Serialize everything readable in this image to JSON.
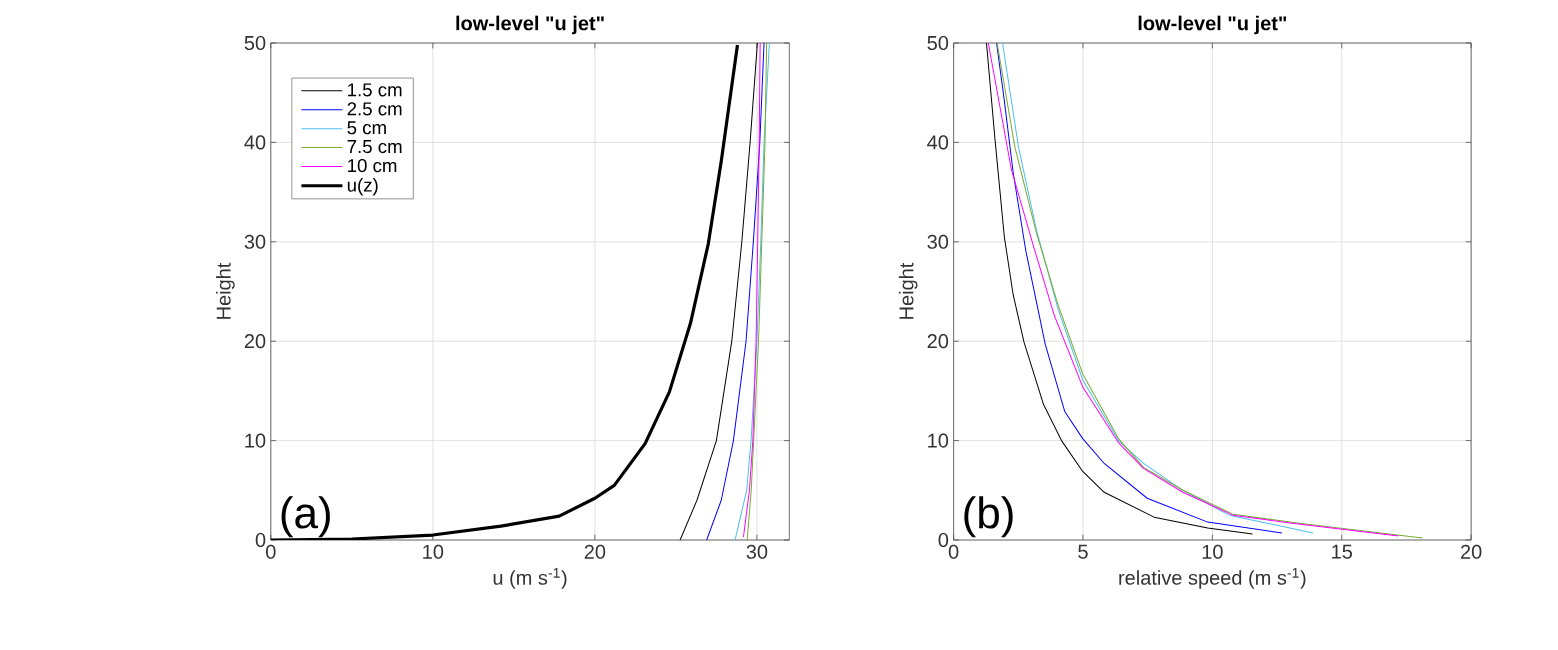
{
  "chart_data": [
    {
      "type": "line",
      "title": "low-level \"u jet\"",
      "xlabel": "u (m s$^{-1}$)",
      "ylabel": "Height",
      "annotations": [
        "(a)"
      ],
      "xlim": [
        0,
        32
      ],
      "ylim": [
        0,
        50
      ],
      "xticks": [
        0,
        10,
        20,
        30
      ],
      "yticks": [
        0,
        10,
        20,
        30,
        40,
        50
      ],
      "grid": true,
      "legend": "top left",
      "series": [
        {
          "name": "1.5 cm",
          "color": "#000000",
          "x": [
            25.26,
            26.3,
            27.5,
            28.45,
            29.07,
            29.58,
            30.03
          ],
          "values": [
            0,
            4,
            10,
            20,
            30,
            40,
            50
          ]
        },
        {
          "name": "2.5 cm",
          "color": "#0000ff",
          "x": [
            26.9,
            27.8,
            28.55,
            29.33,
            29.78,
            30.18,
            30.44
          ],
          "values": [
            0,
            4,
            10,
            20,
            30,
            40,
            50
          ]
        },
        {
          "name": "5 cm",
          "color": "#4dbeee",
          "x": [
            28.65,
            29.37,
            29.64,
            30.0,
            30.24,
            30.44,
            30.77
          ],
          "values": [
            0,
            5,
            10,
            20,
            30,
            40,
            50
          ]
        },
        {
          "name": "7.5 cm",
          "color": "#77ac30",
          "x": [
            29.4,
            29.65,
            29.8,
            30.1,
            30.3,
            30.5,
            30.6
          ],
          "values": [
            0,
            5,
            10,
            20,
            30,
            40,
            50
          ]
        },
        {
          "name": "10 cm",
          "color": "#ff00ff",
          "x": [
            29.17,
            29.54,
            29.75,
            29.95,
            30.05,
            30.14,
            30.2
          ],
          "values": [
            0.3,
            5,
            10,
            20,
            30,
            40,
            50
          ]
        },
        {
          "name": "u(z)",
          "color": "#000000",
          "x": [
            0,
            5,
            10,
            14.2,
            17.8,
            20,
            21.2,
            23.1,
            24.6,
            25.9,
            27.0,
            27.8,
            28.8
          ],
          "values": [
            0,
            0.1,
            0.5,
            1.4,
            2.4,
            4.2,
            5.5,
            9.7,
            14.9,
            21.8,
            29.8,
            38.1,
            49.8
          ]
        }
      ]
    },
    {
      "type": "line",
      "title": "low-level \"u jet\"",
      "xlabel": "relative speed (m s$^{-1}$)",
      "ylabel": "Height",
      "annotations": [
        "(b)"
      ],
      "xlim": [
        0,
        20
      ],
      "ylim": [
        0,
        50
      ],
      "xticks": [
        0,
        5,
        10,
        15,
        20
      ],
      "yticks": [
        0,
        10,
        20,
        30,
        40,
        50
      ],
      "grid": true,
      "series": [
        {
          "color": "#000000",
          "x": [
            11.55,
            9.82,
            7.75,
            5.82,
            4.99,
            4.17,
            3.48,
            2.72,
            2.3,
            1.96,
            1.61,
            1.27
          ],
          "values": [
            0.6,
            1.2,
            2.3,
            4.8,
            6.9,
            10.0,
            13.6,
            19.9,
            24.7,
            30.5,
            40,
            50
          ]
        },
        {
          "color": "#0000ff",
          "x": [
            12.69,
            9.82,
            7.48,
            5.82,
            4.99,
            4.3,
            3.54,
            2.79,
            2.3,
            1.96,
            1.66
          ],
          "values": [
            0.7,
            1.8,
            4.2,
            7.7,
            10.2,
            12.9,
            19.7,
            29.1,
            37.0,
            44.2,
            50
          ]
        },
        {
          "color": "#4dbeee",
          "x": [
            13.89,
            10.65,
            8.86,
            7.34,
            6.37,
            4.99,
            4.03,
            3.2,
            2.51,
            1.89
          ],
          "values": [
            0.7,
            2.5,
            5.0,
            7.7,
            10,
            16.1,
            23.3,
            31.2,
            39.5,
            50
          ]
        },
        {
          "color": "#77ac30",
          "x": [
            18.12,
            13.27,
            10.79,
            8.86,
            7.34,
            6.37,
            4.99,
            4.03,
            3.2,
            2.37,
            1.68
          ],
          "values": [
            0.2,
            1.7,
            2.6,
            5.0,
            7.3,
            10.2,
            16.7,
            23.7,
            30.9,
            39.5,
            50
          ]
        },
        {
          "color": "#ff00ff",
          "x": [
            17.2,
            13.0,
            10.79,
            8.86,
            7.34,
            6.37,
            4.99,
            3.89,
            3.06,
            2.23,
            1.34
          ],
          "values": [
            0.4,
            1.7,
            2.5,
            4.8,
            7.2,
            9.8,
            15.4,
            22.6,
            29.8,
            37.3,
            50
          ]
        }
      ]
    }
  ]
}
